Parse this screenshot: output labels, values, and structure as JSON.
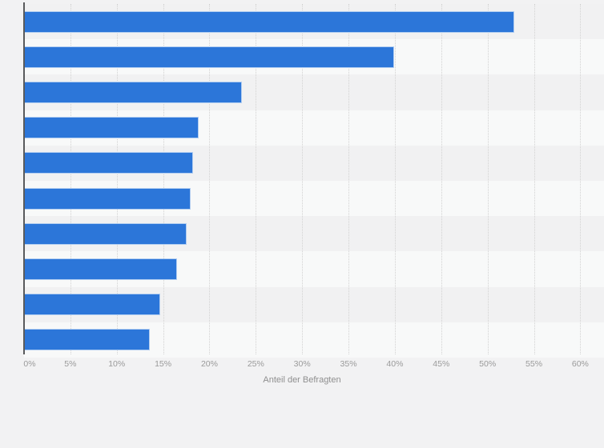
{
  "page": {
    "background_color": "#f2f2f3"
  },
  "x_axis": {
    "label": "Anteil der Befragten"
  },
  "chart_data": {
    "type": "bar",
    "orientation": "horizontal",
    "title": "",
    "xlabel": "Anteil der Befragten",
    "ylabel": "",
    "xlim": [
      0,
      60
    ],
    "x_tick_labels": [
      "0%",
      "5%",
      "10%",
      "15%",
      "20%",
      "25%",
      "30%",
      "35%",
      "40%",
      "45%",
      "50%",
      "55%",
      "60%"
    ],
    "x_tick_values": [
      0,
      5,
      10,
      15,
      20,
      25,
      30,
      35,
      40,
      45,
      50,
      55,
      60
    ],
    "categories_visible": false,
    "categories": [],
    "values": [
      52.9,
      39.9,
      23.5,
      18.8,
      18.2,
      18.0,
      17.5,
      16.5,
      14.7,
      13.6
    ],
    "unit": "%",
    "grid": "vertical-dotted",
    "legend": "none",
    "row_striping": "alternating, first band dark",
    "colors": {
      "bar": "#2c76d9",
      "bar_border": "#b3cef1",
      "axis_line": "#595a5c",
      "gridline": "#d2d2d2",
      "tick_label": "#9a9a9a",
      "axis_title": "#8f8f8f",
      "row_stripe_light": "#f8f9f9",
      "row_stripe_dark": "#f1f1f2",
      "page_background": "#f2f2f3"
    }
  }
}
